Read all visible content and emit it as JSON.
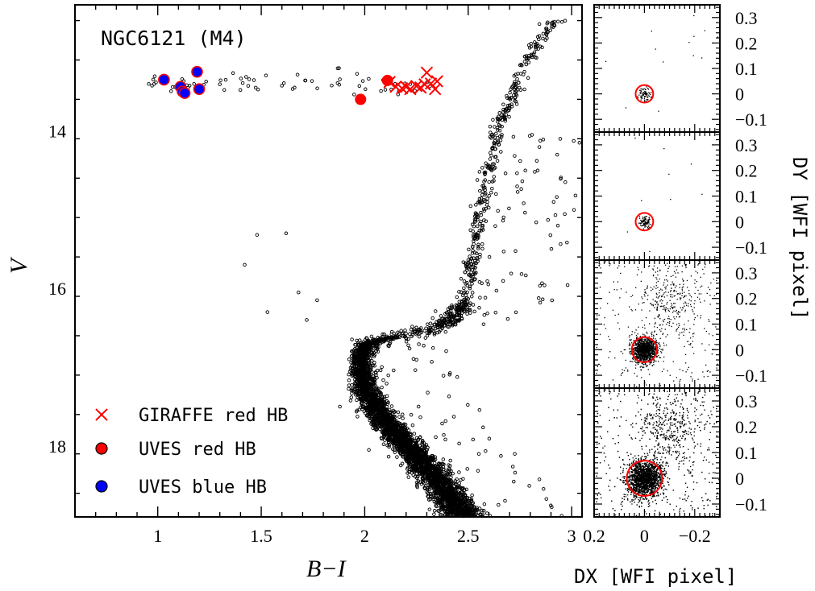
{
  "chart_data": [
    {
      "type": "scatter",
      "title": "NGC6121 (M4)",
      "xlabel": "B−I",
      "ylabel": "V",
      "xlim": [
        0.6,
        3.05
      ],
      "ylim": [
        18.9,
        12.4
      ],
      "y_inverted": true,
      "xticks": [
        "1",
        "1.5",
        "2",
        "2.5",
        "3"
      ],
      "yticks": [
        "14",
        "16",
        "18"
      ],
      "legend": {
        "placement": "bottom-left",
        "entries": [
          "GIRAFFE red HB",
          "UVES red HB",
          "UVES blue HB"
        ]
      },
      "colors": {
        "giraffe": "#ff0000",
        "uves_red": "#ff0000",
        "uves_blue": "#0000ff",
        "field": "#000000",
        "frame": "#000000"
      },
      "series": [
        {
          "name": "GIRAFFE red HB",
          "marker": "x",
          "x": [
            2.12,
            2.15,
            2.18,
            2.2,
            2.22,
            2.25,
            2.27,
            2.29,
            2.3,
            2.32,
            2.34,
            2.35
          ],
          "y": [
            13.38,
            13.44,
            13.46,
            13.44,
            13.47,
            13.43,
            13.45,
            13.41,
            13.26,
            13.4,
            13.47,
            13.37
          ]
        },
        {
          "name": "UVES red HB",
          "marker": "filled-circle",
          "x": [
            2.11,
            1.98
          ],
          "y": [
            13.36,
            13.6
          ]
        },
        {
          "name": "UVES blue HB",
          "marker": "filled-circle-red-edge",
          "x": [
            1.03,
            1.11,
            1.12,
            1.13,
            1.19,
            1.2
          ],
          "y": [
            13.35,
            13.44,
            13.5,
            13.52,
            13.25,
            13.47
          ]
        }
      ],
      "cmd_ridge": {
        "label": "photometric sequence (dense black points)",
        "v": [
          12.6,
          13.0,
          13.5,
          14.0,
          14.5,
          15.0,
          15.5,
          16.0,
          16.3,
          16.5,
          16.7,
          16.9,
          17.1,
          17.3,
          17.5,
          17.7,
          17.9,
          18.1,
          18.3,
          18.5,
          18.7,
          18.9
        ],
        "b_minus_i": [
          2.92,
          2.8,
          2.72,
          2.64,
          2.6,
          2.56,
          2.53,
          2.5,
          2.46,
          2.35,
          2.0,
          1.98,
          1.99,
          2.01,
          2.05,
          2.1,
          2.17,
          2.24,
          2.31,
          2.37,
          2.43,
          2.48
        ]
      }
    },
    {
      "type": "scatter",
      "xlabel": "DX [WFI pixel]",
      "ylabel": "DY [WFI pixel]",
      "xlim": [
        0.2,
        -0.3
      ],
      "ylim": [
        -0.15,
        0.35
      ],
      "xticks": [
        "0.2",
        "0",
        "−0.2"
      ],
      "yticks": [
        "0.3",
        "0.2",
        "0.1",
        "0",
        "−0.1"
      ],
      "panels": [
        {
          "circle_center": [
            0.0,
            0.0
          ],
          "circle_radius": 0.035,
          "density": "sparse"
        },
        {
          "circle_center": [
            0.0,
            0.0
          ],
          "circle_radius": 0.035,
          "density": "sparse"
        },
        {
          "circle_center": [
            0.0,
            0.0
          ],
          "circle_radius": 0.05,
          "density": "medium"
        },
        {
          "circle_center": [
            0.0,
            0.0
          ],
          "circle_radius": 0.07,
          "density": "dense"
        }
      ]
    }
  ]
}
